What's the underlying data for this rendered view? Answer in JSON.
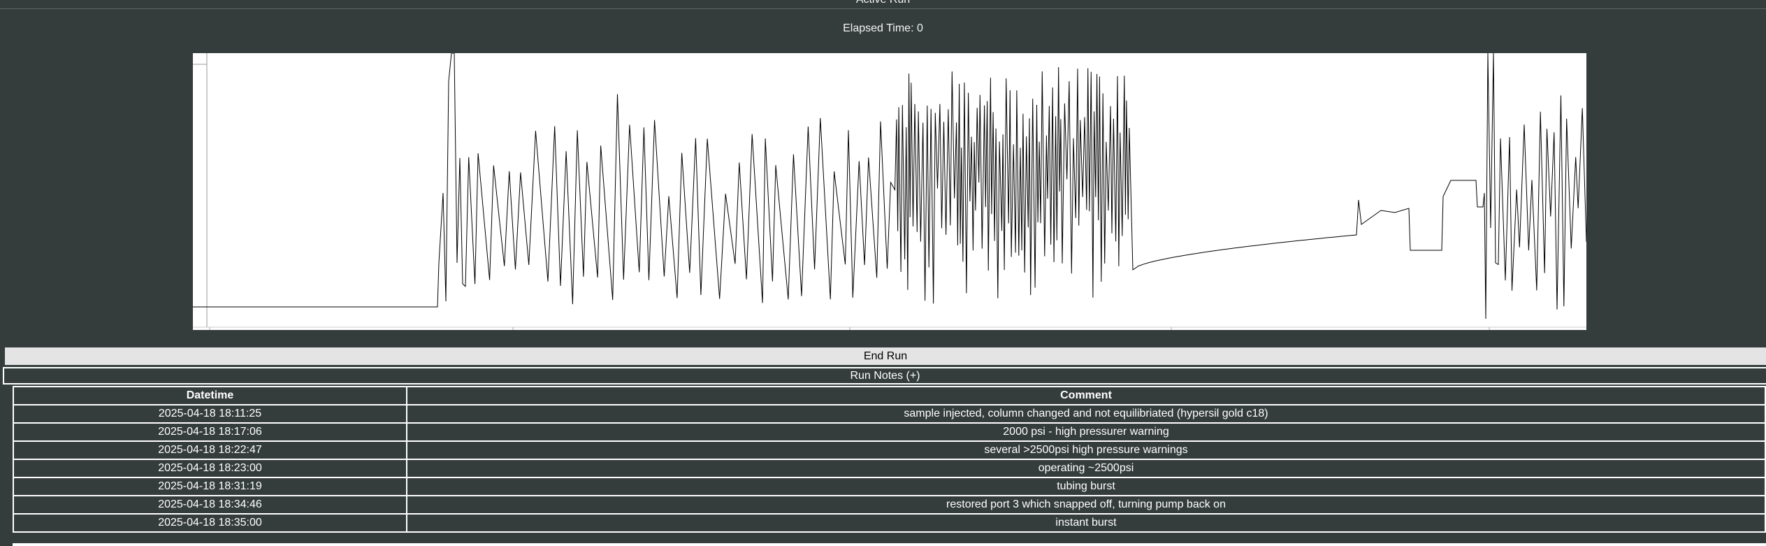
{
  "header": {
    "title": "Active Run",
    "elapsed_label": "Elapsed Time: 0"
  },
  "chart": {
    "line_color": "#000000",
    "background": "#ffffff",
    "axis_color": "#888888"
  },
  "actions": {
    "end_run_label": "End Run",
    "notes_toggle_label": "Run Notes (+)"
  },
  "notes": {
    "columns": [
      "Datetime",
      "Comment"
    ],
    "rows": [
      {
        "datetime": "2025-04-18 18:11:25",
        "comment": "sample injected, column changed and not equilibriated (hypersil gold c18)"
      },
      {
        "datetime": "2025-04-18 18:17:06",
        "comment": "2000 psi - high pressurer warning"
      },
      {
        "datetime": "2025-04-18 18:22:47",
        "comment": "several >2500psi high pressure warnings"
      },
      {
        "datetime": "2025-04-18 18:23:00",
        "comment": "operating ~2500psi"
      },
      {
        "datetime": "2025-04-18 18:31:19",
        "comment": "tubing burst"
      },
      {
        "datetime": "2025-04-18 18:34:46",
        "comment": "restored port 3 which snapped off, turning pump back on"
      },
      {
        "datetime": "2025-04-18 18:35:00",
        "comment": "instant burst"
      }
    ]
  },
  "colors": {
    "page_background": "#353d3c",
    "button_background": "#e4e4e4",
    "table_border": "#ffffff"
  }
}
